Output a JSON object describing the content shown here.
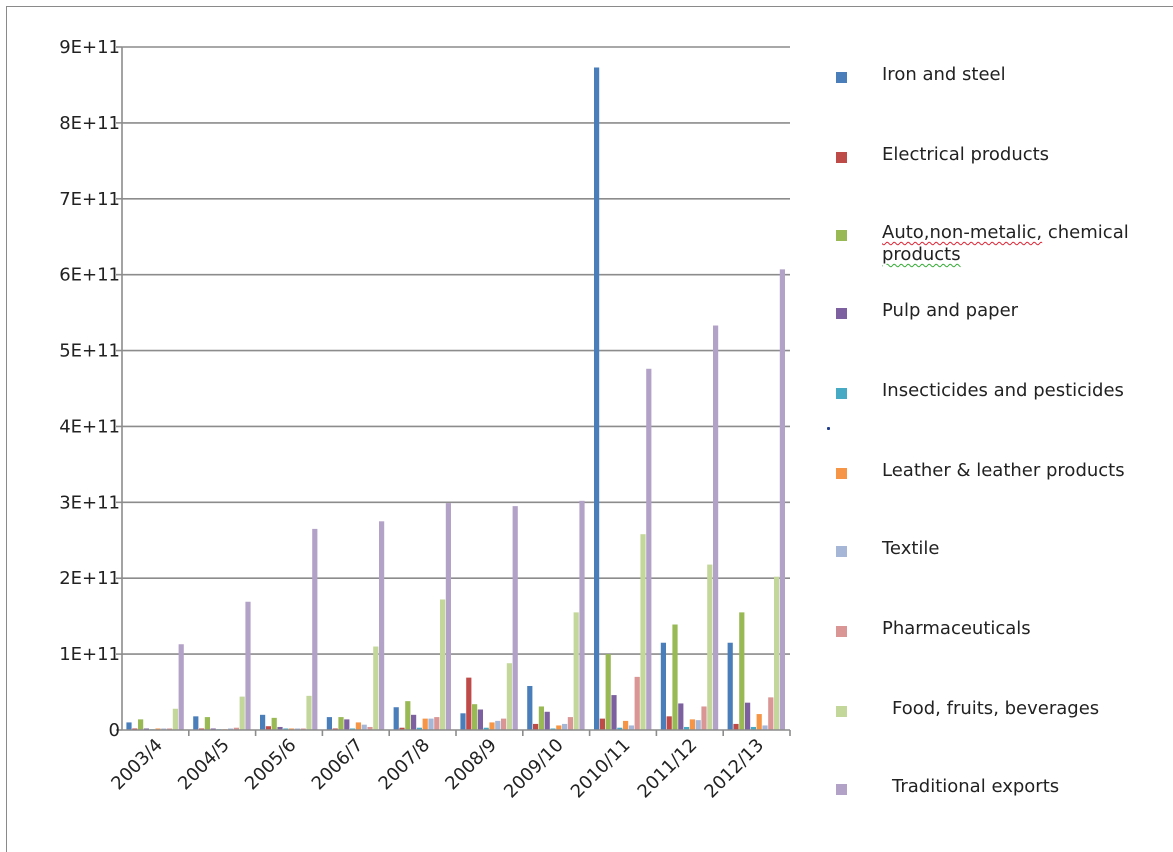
{
  "chart_data": {
    "type": "bar",
    "title": "",
    "xlabel": "",
    "ylabel": "",
    "ylim": [
      0,
      900000000000
    ],
    "y_ticks": [
      0,
      100000000000,
      200000000000,
      300000000000,
      400000000000,
      500000000000,
      600000000000,
      700000000000,
      800000000000,
      900000000000
    ],
    "y_tick_labels": [
      "0",
      "1E+11",
      "2E+11",
      "3E+11",
      "4E+11",
      "5E+11",
      "6E+11",
      "7E+11",
      "8E+11",
      "9E+11"
    ],
    "grid": true,
    "legend_position": "right",
    "categories": [
      "2003/4",
      "2004/5",
      "2005/6",
      "2006/7",
      "2007/8",
      "2008/9",
      "2009/10",
      "2010/11",
      "2011/12",
      "2012/13"
    ],
    "series": [
      {
        "name": "Iron and steel",
        "color": "#4a7ebb",
        "values": [
          10000000000,
          18000000000,
          20000000000,
          17000000000,
          30000000000,
          22000000000,
          58000000000,
          873000000000,
          115000000000,
          115000000000
        ]
      },
      {
        "name": "Electrical products",
        "color": "#be4b48",
        "values": [
          2000000000,
          2000000000,
          5000000000,
          2000000000,
          3000000000,
          69000000000,
          8000000000,
          15000000000,
          18000000000,
          8000000000
        ]
      },
      {
        "name": "Auto,non-metalic, chemical products",
        "color": "#98b954",
        "values": [
          14000000000,
          17000000000,
          16000000000,
          17000000000,
          38000000000,
          34000000000,
          31000000000,
          100000000000,
          139000000000,
          155000000000
        ]
      },
      {
        "name": "Pulp and paper",
        "color": "#7d60a0",
        "values": [
          2000000000,
          2000000000,
          4000000000,
          14000000000,
          20000000000,
          27000000000,
          24000000000,
          46000000000,
          35000000000,
          36000000000
        ]
      },
      {
        "name": "Insecticides and pesticides",
        "color": "#46aac5",
        "values": [
          1000000000,
          1000000000,
          2000000000,
          2000000000,
          3000000000,
          3000000000,
          2000000000,
          3000000000,
          4000000000,
          4000000000
        ]
      },
      {
        "name": "Leather & leather products",
        "color": "#f69546",
        "values": [
          2000000000,
          1000000000,
          2000000000,
          10000000000,
          15000000000,
          10000000000,
          6000000000,
          12000000000,
          14000000000,
          21000000000
        ]
      },
      {
        "name": "Textile",
        "color": "#a5b6d7",
        "values": [
          2000000000,
          2000000000,
          2000000000,
          7000000000,
          15000000000,
          12000000000,
          8000000000,
          6000000000,
          13000000000,
          6000000000
        ]
      },
      {
        "name": "Pharmaceuticals",
        "color": "#d99694",
        "values": [
          2000000000,
          3000000000,
          2000000000,
          4000000000,
          17000000000,
          15000000000,
          17000000000,
          70000000000,
          31000000000,
          43000000000
        ]
      },
      {
        "name": " Food, fruits, beverages",
        "color": "#c4d79b",
        "values": [
          28000000000,
          44000000000,
          45000000000,
          110000000000,
          172000000000,
          88000000000,
          155000000000,
          258000000000,
          218000000000,
          202000000000
        ]
      },
      {
        "name": " Traditional exports",
        "color": "#b3a2c7",
        "values": [
          113000000000,
          169000000000,
          265000000000,
          275000000000,
          299000000000,
          295000000000,
          302000000000,
          476000000000,
          533000000000,
          607000000000
        ]
      }
    ]
  }
}
